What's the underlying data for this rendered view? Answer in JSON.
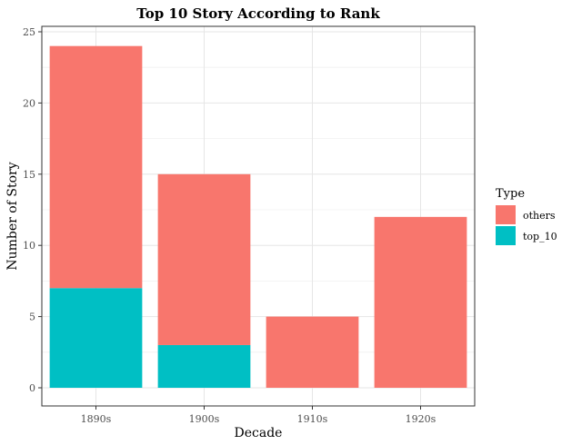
{
  "chart_data": {
    "type": "bar",
    "stacked": true,
    "title": "Top 10 Story According to Rank",
    "xlabel": "Decade",
    "ylabel": "Number of Story",
    "categories": [
      "1890s",
      "1900s",
      "1910s",
      "1920s"
    ],
    "series": [
      {
        "name": "top_10",
        "values": [
          7,
          3,
          0,
          0
        ],
        "color": "#00BFC4"
      },
      {
        "name": "others",
        "values": [
          17,
          12,
          5,
          12
        ],
        "color": "#F8766D"
      }
    ],
    "ylim": [
      0,
      25
    ],
    "yticks": [
      0,
      5,
      10,
      15,
      20,
      25
    ],
    "grid": true,
    "legend": {
      "title": "Type",
      "position": "right",
      "entries": [
        {
          "label": "others",
          "color": "#F8766D"
        },
        {
          "label": "top_10",
          "color": "#00BFC4"
        }
      ]
    }
  }
}
